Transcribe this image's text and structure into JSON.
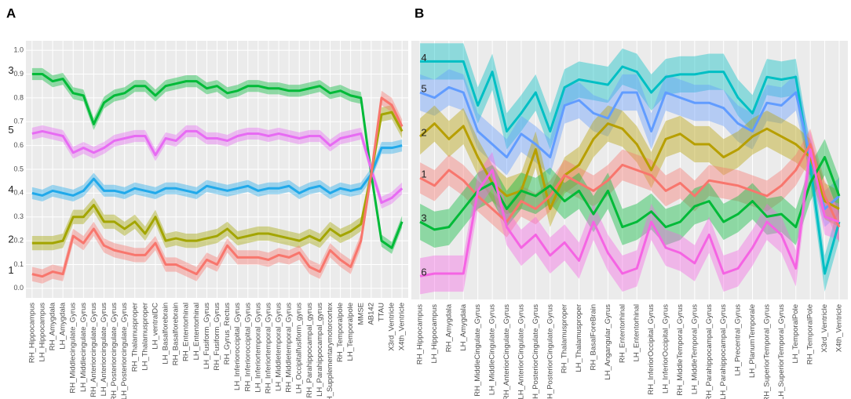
{
  "chart_data": [
    {
      "type": "line",
      "label": "A",
      "grid": true,
      "ylim": [
        -0.04,
        1.04
      ],
      "yticks": [
        {
          "value": 0,
          "label": "0.0"
        },
        0.1,
        0.2,
        0.3,
        0.4,
        0.5,
        0.6,
        0.7,
        0.8,
        0.9,
        {
          "value": 1,
          "label": "1.0"
        }
      ],
      "categories": [
        "RH_Hippocampus",
        "LH_Hippocampus",
        "RH_Amygdala",
        "LH_Amygdala",
        "RH_Middlecingulate_Gyrus",
        "LH_Middlecingulate_Gyrus",
        "RH_Anteriorcingulate_Gyrus",
        "LH_Anteriorcingulate_Gyrus",
        "RH_Posteriorcingulate_Gyrus",
        "LH_Posteriorcingulate_Gyrus",
        "RH_Thalamusproper",
        "LH_Thalamusproper",
        "LH_ventralDC",
        "LH_Basalforebrain",
        "RH_Basalforebrain",
        "RH_Ententorhinal",
        "LH_Ententorhinal",
        "LH_Fusiform_Gyrus",
        "RH_Fusiform_Gyrus",
        "RH_Gyrus_Rectus",
        "LH_Inferioroccipital_Gyrus",
        "RH_Inferioroccipital_Gyrus",
        "LH_Inferiortemporal_Gyrus",
        "RH_Inferiortemporal_Gyrus",
        "LH_Middletemporal_Gyrus",
        "RH_Middletemporal_Gyrus",
        "LH_Occipitalfusiform_gyrus",
        "RH_Parahippocampal_gyrus",
        "LH_Parahippocampal_gyrus",
        "LH_Supplementarymotorcortex",
        "RH_Temporalpole",
        "LH_Temporalpole",
        "MMSE",
        "AB142",
        "TTAU",
        "X3rd_Ventricle",
        "X4th_Ventricle"
      ],
      "series": [
        {
          "name": "3",
          "color": "#00ba38",
          "error": 0.025,
          "values": [
            0.9,
            0.9,
            0.87,
            0.88,
            0.82,
            0.81,
            0.69,
            0.78,
            0.81,
            0.82,
            0.85,
            0.85,
            0.81,
            0.85,
            0.86,
            0.87,
            0.87,
            0.84,
            0.85,
            0.82,
            0.83,
            0.85,
            0.85,
            0.84,
            0.84,
            0.83,
            0.83,
            0.84,
            0.85,
            0.82,
            0.83,
            0.81,
            0.8,
            0.48,
            0.2,
            0.17,
            0.28
          ]
        },
        {
          "name": "5",
          "color": "#e76bf3",
          "error": 0.025,
          "values": [
            0.65,
            0.66,
            0.65,
            0.64,
            0.57,
            0.59,
            0.57,
            0.59,
            0.62,
            0.63,
            0.64,
            0.64,
            0.56,
            0.63,
            0.62,
            0.66,
            0.66,
            0.63,
            0.63,
            0.62,
            0.64,
            0.65,
            0.65,
            0.64,
            0.65,
            0.64,
            0.63,
            0.64,
            0.64,
            0.6,
            0.63,
            0.64,
            0.65,
            0.5,
            0.36,
            0.38,
            0.42
          ]
        },
        {
          "name": "4",
          "color": "#21a9ea",
          "error": 0.025,
          "values": [
            0.4,
            0.39,
            0.41,
            0.4,
            0.39,
            0.41,
            0.46,
            0.41,
            0.41,
            0.4,
            0.42,
            0.41,
            0.4,
            0.42,
            0.42,
            0.41,
            0.4,
            0.43,
            0.42,
            0.41,
            0.42,
            0.43,
            0.41,
            0.42,
            0.42,
            0.43,
            0.4,
            0.42,
            0.43,
            0.4,
            0.42,
            0.41,
            0.42,
            0.48,
            0.59,
            0.59,
            0.6
          ]
        },
        {
          "name": "2",
          "color": "#a3a500",
          "error": 0.03,
          "values": [
            0.19,
            0.19,
            0.19,
            0.2,
            0.3,
            0.3,
            0.35,
            0.28,
            0.28,
            0.25,
            0.28,
            0.23,
            0.3,
            0.2,
            0.21,
            0.2,
            0.2,
            0.21,
            0.22,
            0.25,
            0.21,
            0.22,
            0.23,
            0.23,
            0.22,
            0.21,
            0.2,
            0.22,
            0.2,
            0.25,
            0.22,
            0.24,
            0.27,
            0.48,
            0.73,
            0.74,
            0.66
          ]
        },
        {
          "name": "1",
          "color": "#f8766d",
          "error": 0.03,
          "values": [
            0.06,
            0.05,
            0.07,
            0.06,
            0.22,
            0.19,
            0.25,
            0.18,
            0.16,
            0.15,
            0.14,
            0.14,
            0.19,
            0.1,
            0.1,
            0.08,
            0.06,
            0.12,
            0.1,
            0.18,
            0.13,
            0.13,
            0.13,
            0.12,
            0.14,
            0.13,
            0.15,
            0.09,
            0.07,
            0.16,
            0.12,
            0.09,
            0.2,
            0.48,
            0.8,
            0.77,
            0.68
          ]
        }
      ]
    },
    {
      "type": "line",
      "label": "B",
      "grid": true,
      "ylim": [
        0,
        1
      ],
      "categories": [
        "RH_Hippocampus",
        "LH_Hippocampus",
        "RH_Amygdala",
        "LH_Amygdala",
        "RH_MiddleCingulate_Gyrus",
        "LH_MiddleCingulate_Gyrus",
        "RH_AnteriorCingulate_Gyrus",
        "LH_AnteriorCingulate_Gyrus",
        "RH_PosteriorCingulate_Gyrus",
        "LH_PosteriorCingulate_Gyrus",
        "RH_Thalamusproper",
        "LH_Thalamusproper",
        "RH_BasalForeBrain",
        "LH_Angangular_Gyrus",
        "RH_Ententorhinal",
        "LH_Ententorhinal",
        "RH_InferiorOccipital_Gyrus",
        "LH_InferiorOccipital_Gyrus",
        "RH_MiddleTemporal_Gyrus",
        "LH_MiddleTemporal_Gyrus",
        "RH_Parahippocampal_Gyrus",
        "LH_Parahippocampal_Gyrus",
        "LH_Precentral_Gyrus",
        "LH_PlanumTemporale",
        "RH_SuperiorTemporal_Gyrus",
        "LH_SuperiorTemporal_Gyrus",
        "LH_TemporalPole",
        "RH_TemporalPole",
        "X3rd_Ventricle",
        "X4th_Ventricle"
      ],
      "series": [
        {
          "name": "4",
          "color": "#00bfc4",
          "error": 0.07,
          "values": [
            0.92,
            0.92,
            0.92,
            0.92,
            0.75,
            0.88,
            0.65,
            0.72,
            0.8,
            0.65,
            0.82,
            0.85,
            0.84,
            0.83,
            0.9,
            0.88,
            0.8,
            0.86,
            0.87,
            0.87,
            0.88,
            0.88,
            0.78,
            0.72,
            0.86,
            0.85,
            0.86,
            0.52,
            0.1,
            0.3
          ]
        },
        {
          "name": "5",
          "color": "#619cff",
          "error": 0.07,
          "values": [
            0.8,
            0.78,
            0.82,
            0.8,
            0.65,
            0.6,
            0.55,
            0.64,
            0.6,
            0.55,
            0.75,
            0.77,
            0.72,
            0.7,
            0.8,
            0.8,
            0.65,
            0.8,
            0.78,
            0.76,
            0.76,
            0.74,
            0.68,
            0.65,
            0.76,
            0.75,
            0.8,
            0.55,
            0.35,
            0.4
          ]
        },
        {
          "name": "2",
          "color": "#b79f00",
          "error": 0.07,
          "values": [
            0.63,
            0.68,
            0.62,
            0.67,
            0.55,
            0.45,
            0.4,
            0.42,
            0.58,
            0.35,
            0.48,
            0.52,
            0.62,
            0.68,
            0.66,
            0.6,
            0.5,
            0.62,
            0.64,
            0.6,
            0.6,
            0.55,
            0.58,
            0.63,
            0.66,
            0.63,
            0.6,
            0.55,
            0.38,
            0.35
          ]
        },
        {
          "name": "1",
          "color": "#f8766d",
          "error": 0.06,
          "values": [
            0.47,
            0.44,
            0.5,
            0.46,
            0.4,
            0.35,
            0.3,
            0.38,
            0.35,
            0.4,
            0.48,
            0.45,
            0.42,
            0.46,
            0.52,
            0.5,
            0.48,
            0.42,
            0.45,
            0.4,
            0.46,
            0.45,
            0.44,
            0.42,
            0.4,
            0.44,
            0.5,
            0.6,
            0.4,
            0.28
          ]
        },
        {
          "name": "3",
          "color": "#00ba38",
          "error": 0.07,
          "values": [
            0.3,
            0.27,
            0.28,
            0.35,
            0.42,
            0.45,
            0.35,
            0.42,
            0.4,
            0.44,
            0.38,
            0.42,
            0.33,
            0.42,
            0.28,
            0.3,
            0.34,
            0.28,
            0.3,
            0.36,
            0.38,
            0.3,
            0.33,
            0.38,
            0.32,
            0.33,
            0.28,
            0.45,
            0.55,
            0.4
          ]
        },
        {
          "name": "6",
          "color": "#f564e3",
          "error": 0.07,
          "values": [
            0.09,
            0.1,
            0.1,
            0.1,
            0.42,
            0.5,
            0.28,
            0.2,
            0.25,
            0.17,
            0.22,
            0.15,
            0.3,
            0.18,
            0.1,
            0.12,
            0.3,
            0.2,
            0.18,
            0.14,
            0.25,
            0.1,
            0.12,
            0.2,
            0.3,
            0.25,
            0.12,
            0.58,
            0.32,
            0.3
          ]
        }
      ]
    }
  ]
}
